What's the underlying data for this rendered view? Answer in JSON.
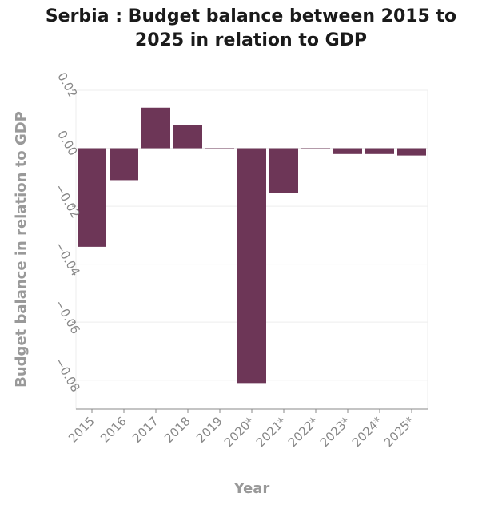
{
  "title_lines": [
    "Serbia : Budget balance between 2015 to",
    "2025 in relation to GDP"
  ],
  "chart_data": {
    "type": "bar",
    "title": "Serbia : Budget balance between 2015 to 2025 in relation to GDP",
    "xlabel": "Year",
    "ylabel": "Budget balance in relation to GDP",
    "categories": [
      "2015",
      "2016",
      "2017",
      "2018",
      "2019",
      "2020*",
      "2021*",
      "2022*",
      "2023*",
      "2024*",
      "2025*"
    ],
    "values": [
      -0.034,
      -0.011,
      0.014,
      0.008,
      0.0,
      -0.081,
      -0.0155,
      0.0,
      -0.002,
      -0.002,
      -0.0025
    ],
    "yticks": [
      0.02,
      0.0,
      -0.02,
      -0.04,
      -0.06,
      -0.08
    ],
    "ytick_labels": [
      "0.02",
      "0.00",
      "−0.02",
      "−0.04",
      "−0.06",
      "−0.08"
    ],
    "ylim": [
      -0.09,
      0.02
    ],
    "grid": true,
    "bar_color": "#6d3657"
  }
}
